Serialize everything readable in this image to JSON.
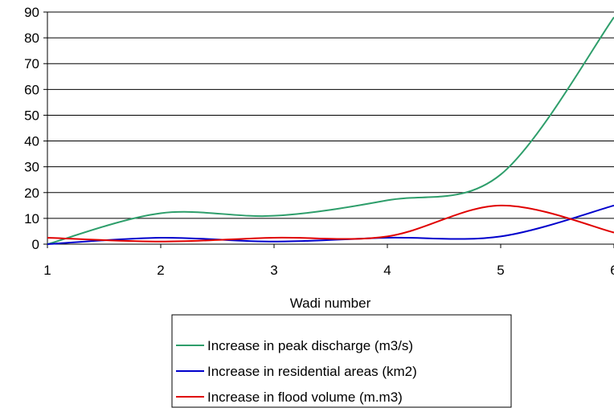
{
  "chart_data": {
    "type": "line",
    "xlabel": "Wadi number",
    "ylabel": "",
    "xlim": [
      1,
      6
    ],
    "ylim": [
      0,
      90
    ],
    "x_ticks": [
      "1",
      "2",
      "3",
      "4",
      "5",
      "6"
    ],
    "y_ticks": [
      "0",
      "10",
      "20",
      "30",
      "40",
      "50",
      "60",
      "70",
      "80",
      "90"
    ],
    "grid": "horizontal",
    "legend_position": "bottom-center",
    "x": [
      1,
      2,
      3,
      4,
      5,
      6
    ],
    "series": [
      {
        "name": "Increase in peak discharge (m3/s)",
        "color": "#2e9e6b",
        "values": [
          0,
          12,
          11,
          17,
          27,
          88
        ]
      },
      {
        "name": "Increase in residential areas (km2)",
        "color": "#0000cc",
        "values": [
          0,
          2.5,
          1,
          2.5,
          3,
          15
        ]
      },
      {
        "name": "Increase in flood volume (m.m3)",
        "color": "#e00000",
        "values": [
          2.5,
          1,
          2.5,
          3,
          15,
          4.5
        ]
      }
    ]
  }
}
